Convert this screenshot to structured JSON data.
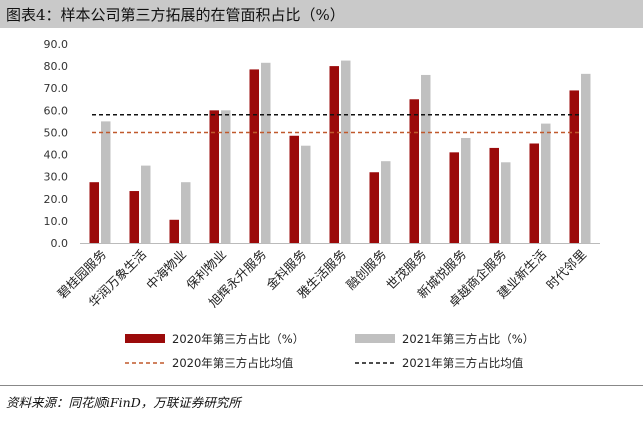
{
  "figure": {
    "title": "图表4：样本公司第三方拓展的在管面积占比（%）",
    "source": "资料来源：同花顺iFinD，万联证券研究所"
  },
  "colors": {
    "series_2020": "#9b0a0a",
    "series_2021": "#c0c0c0",
    "avg_2020": "#c0592c",
    "avg_2021": "#111111"
  },
  "chart_data": {
    "type": "bar",
    "categories": [
      "碧桂园服务",
      "华润万象生活",
      "中海物业",
      "保利物业",
      "旭辉永升服务",
      "金科服务",
      "雅生活服务",
      "融创服务",
      "世茂服务",
      "新城悦服务",
      "卓越商企服务",
      "建业新生活",
      "时代邻里"
    ],
    "series": [
      {
        "name": "2020年第三方占比（%）",
        "values": [
          27.5,
          23.5,
          10.5,
          60.0,
          78.5,
          48.5,
          80.0,
          32.0,
          65.0,
          41.0,
          43.0,
          45.0,
          69.0
        ]
      },
      {
        "name": "2021年第三方占比（%）",
        "values": [
          55.0,
          35.0,
          27.5,
          60.0,
          81.5,
          44.0,
          82.5,
          37.0,
          76.0,
          47.5,
          36.5,
          54.0,
          76.5
        ]
      }
    ],
    "reference_lines": [
      {
        "name": "2020年第三方占比均值",
        "value": 50.0
      },
      {
        "name": "2021年第三方占比均值",
        "value": 58.0
      }
    ],
    "ylim": [
      0,
      90
    ],
    "yticks": [
      "0.0",
      "10.0",
      "20.0",
      "30.0",
      "40.0",
      "50.0",
      "60.0",
      "70.0",
      "80.0",
      "90.0"
    ],
    "grid": false,
    "legend_position": "bottom"
  }
}
